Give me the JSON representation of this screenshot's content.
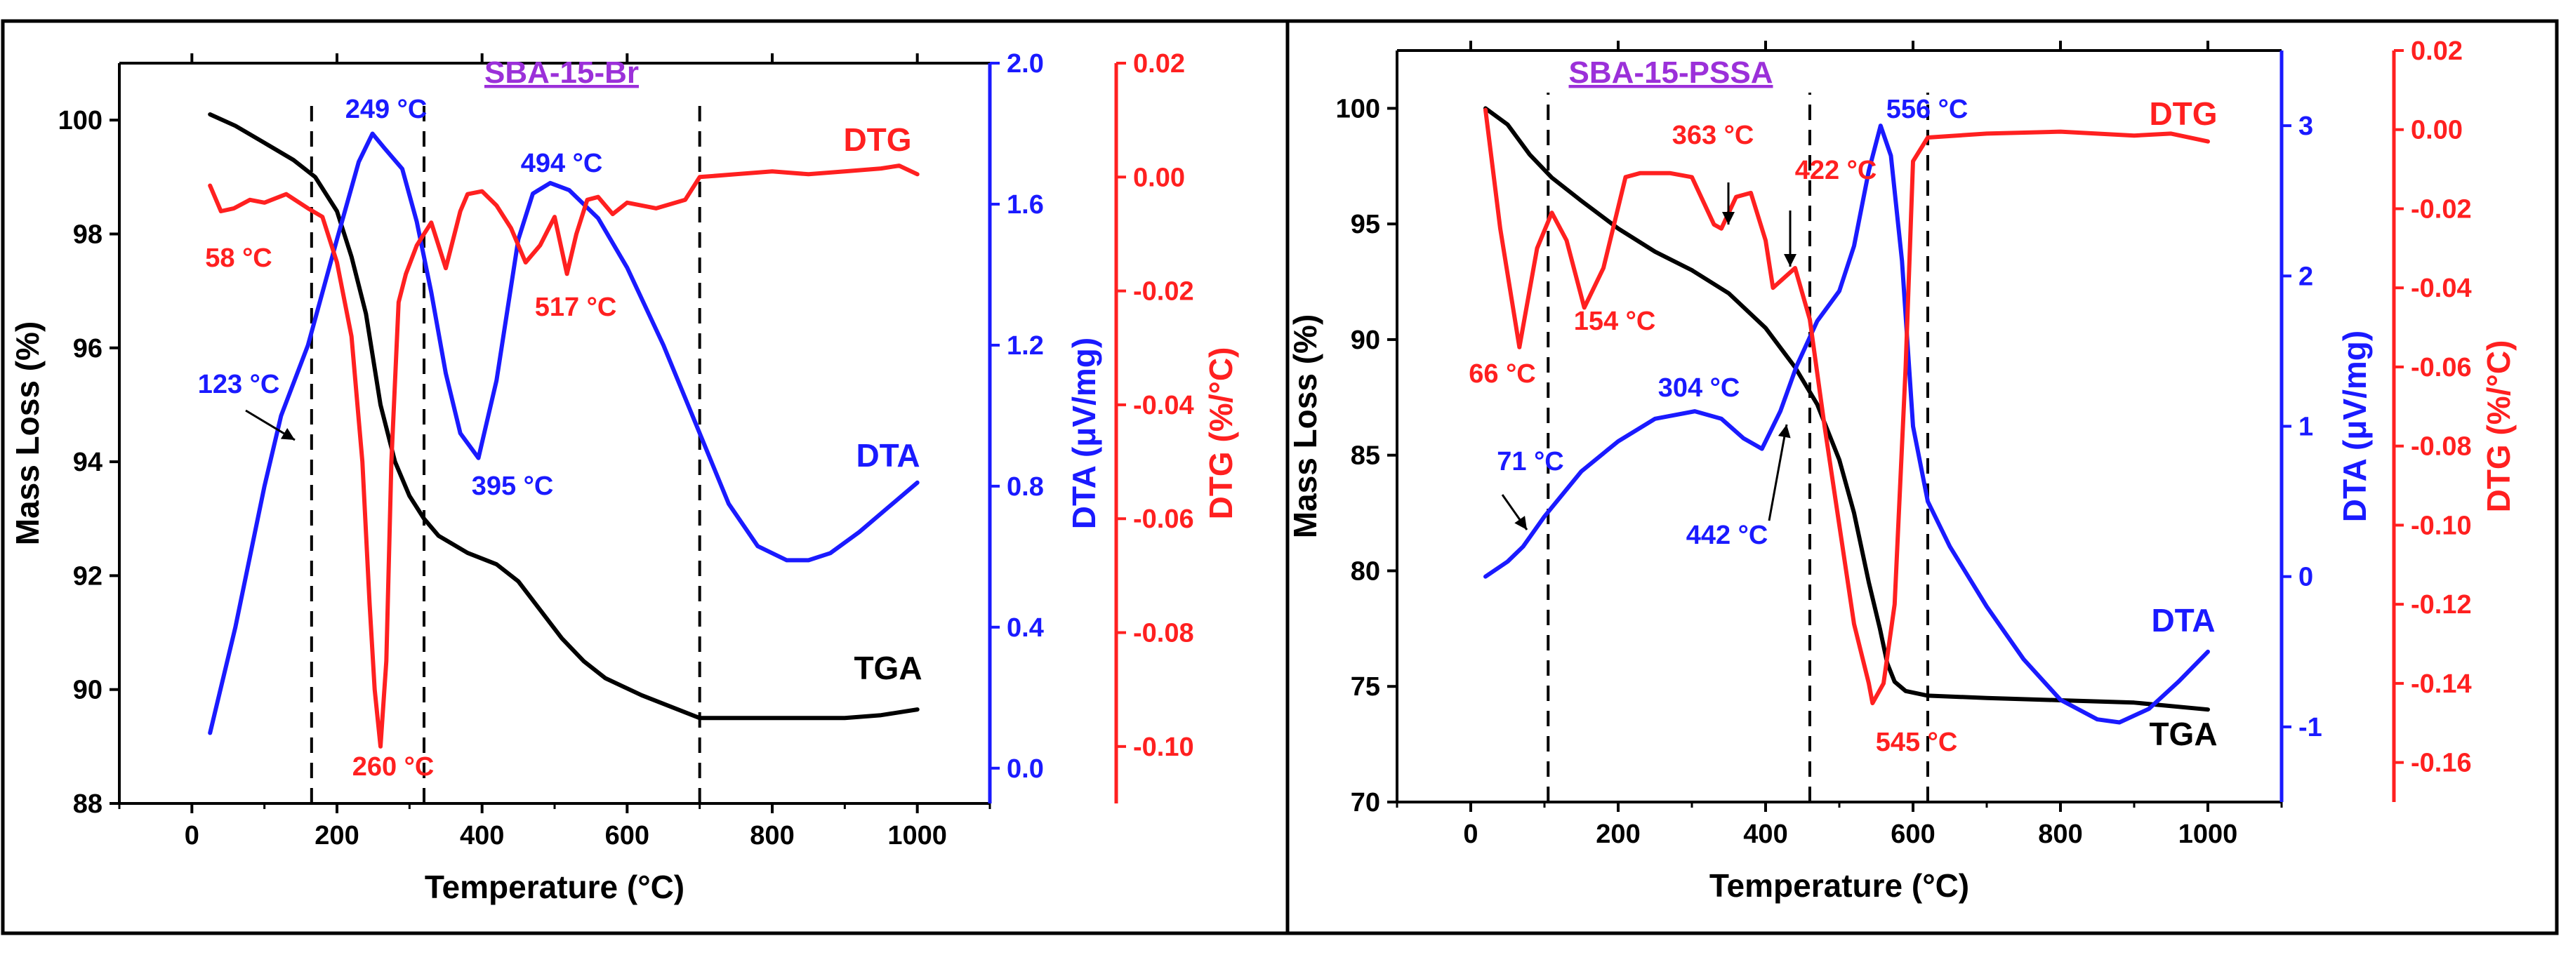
{
  "chart_data": [
    {
      "type": "line",
      "title": "SBA-15-Br",
      "xlabel": "Temperature (°C)",
      "xlim": [
        -100,
        1100
      ],
      "xticks": [
        0,
        200,
        400,
        600,
        800,
        1000
      ],
      "tga_axis": {
        "label": "Mass Loss (%)",
        "range": [
          88,
          101
        ],
        "ticks": [
          88,
          90,
          92,
          94,
          96,
          98,
          100
        ]
      },
      "dta_axis": {
        "label": "DTA (μV/mg)",
        "range": [
          -0.1,
          2.0
        ],
        "ticks": [
          0.0,
          0.4,
          0.8,
          1.2,
          1.6,
          2.0
        ],
        "tick_labels": [
          "0.0",
          "0.4",
          "0.8",
          "1.2",
          "1.6",
          "2.0"
        ]
      },
      "dtg_axis": {
        "label": "DTG (%/°C)",
        "range": [
          -0.11,
          0.02
        ],
        "ticks": [
          -0.1,
          -0.08,
          -0.06,
          -0.04,
          -0.02,
          0.0,
          0.02
        ],
        "tick_labels": [
          "-0.10",
          "-0.08",
          "-0.06",
          "-0.04",
          "-0.02",
          "0.00",
          "0.02"
        ]
      },
      "series": [
        {
          "name": "TGA",
          "color": "#000000",
          "axis": "tga",
          "x": [
            25,
            60,
            100,
            140,
            170,
            200,
            220,
            240,
            260,
            280,
            300,
            320,
            340,
            380,
            420,
            450,
            480,
            510,
            540,
            570,
            620,
            680,
            700,
            750,
            800,
            850,
            900,
            950,
            1000
          ],
          "y": [
            100.1,
            99.9,
            99.6,
            99.3,
            99.0,
            98.4,
            97.6,
            96.6,
            95.0,
            94.0,
            93.4,
            93.0,
            92.7,
            92.4,
            92.2,
            91.9,
            91.4,
            90.9,
            90.5,
            90.2,
            89.9,
            89.6,
            89.5,
            89.5,
            89.5,
            89.5,
            89.5,
            89.55,
            89.65
          ]
        },
        {
          "name": "DTA",
          "color": "#1a1aff",
          "axis": "dta",
          "x": [
            25,
            60,
            100,
            123,
            160,
            200,
            230,
            249,
            265,
            290,
            310,
            330,
            350,
            370,
            395,
            420,
            450,
            470,
            494,
            520,
            560,
            600,
            650,
            700,
            740,
            780,
            820,
            850,
            880,
            920,
            960,
            1000
          ],
          "y": [
            0.1,
            0.4,
            0.8,
            1.0,
            1.2,
            1.5,
            1.72,
            1.8,
            1.76,
            1.7,
            1.55,
            1.35,
            1.12,
            0.95,
            0.88,
            1.1,
            1.5,
            1.63,
            1.66,
            1.64,
            1.56,
            1.42,
            1.2,
            0.95,
            0.75,
            0.63,
            0.59,
            0.59,
            0.61,
            0.67,
            0.74,
            0.81
          ]
        },
        {
          "name": "DTG",
          "color": "#ff2020",
          "axis": "dtg",
          "x": [
            25,
            40,
            58,
            80,
            100,
            130,
            160,
            180,
            200,
            220,
            235,
            245,
            252,
            260,
            268,
            275,
            285,
            295,
            310,
            330,
            350,
            370,
            380,
            400,
            420,
            440,
            460,
            480,
            500,
            517,
            530,
            545,
            560,
            580,
            600,
            640,
            680,
            700,
            750,
            800,
            850,
            900,
            950,
            975,
            1000
          ],
          "y": [
            -0.0015,
            -0.006,
            -0.0055,
            -0.004,
            -0.0045,
            -0.003,
            -0.0055,
            -0.007,
            -0.015,
            -0.028,
            -0.05,
            -0.075,
            -0.09,
            -0.1,
            -0.085,
            -0.05,
            -0.022,
            -0.017,
            -0.012,
            -0.008,
            -0.016,
            -0.006,
            -0.003,
            -0.0025,
            -0.005,
            -0.009,
            -0.015,
            -0.012,
            -0.007,
            -0.017,
            -0.01,
            -0.004,
            -0.0035,
            -0.0065,
            -0.0045,
            -0.0055,
            -0.004,
            0.0,
            0.0005,
            0.001,
            0.0005,
            0.001,
            0.0015,
            0.002,
            0.0005
          ]
        }
      ],
      "annotations": [
        {
          "text": "249 °C",
          "color": "blue"
        },
        {
          "text": "123 °C",
          "color": "blue"
        },
        {
          "text": "395 °C",
          "color": "blue"
        },
        {
          "text": "494 °C",
          "color": "blue"
        },
        {
          "text": "58 °C",
          "color": "red"
        },
        {
          "text": "517 °C",
          "color": "red"
        },
        {
          "text": "260 °C",
          "color": "red"
        }
      ],
      "vlines": [
        165,
        320,
        700
      ],
      "curve_labels": {
        "dtg": "DTG",
        "dta": "DTA",
        "tga": "TGA"
      }
    },
    {
      "type": "line",
      "title": "SBA-15-PSSA",
      "xlabel": "Temperature (°C)",
      "xlim": [
        -100,
        1100
      ],
      "xticks": [
        0,
        200,
        400,
        600,
        800,
        1000
      ],
      "tga_axis": {
        "label": "Mass Loss (%)",
        "range": [
          70,
          102.5
        ],
        "ticks": [
          70,
          75,
          80,
          85,
          90,
          95,
          100
        ]
      },
      "dta_axis": {
        "label": "DTA (μV/mg)",
        "range": [
          -1.5,
          3.5
        ],
        "ticks": [
          -1,
          0,
          1,
          2,
          3
        ],
        "tick_labels": [
          "-1",
          "0",
          "1",
          "2",
          "3"
        ]
      },
      "dtg_axis": {
        "label": "DTG (%/°C)",
        "range": [
          -0.17,
          0.02
        ],
        "ticks": [
          -0.16,
          -0.14,
          -0.12,
          -0.1,
          -0.08,
          -0.06,
          -0.04,
          -0.02,
          0.0,
          0.02
        ],
        "tick_labels": [
          "-0.16",
          "-0.14",
          "-0.12",
          "-0.10",
          "-0.08",
          "-0.06",
          "-0.04",
          "-0.02",
          "0.00",
          "0.02"
        ]
      },
      "series": [
        {
          "name": "TGA",
          "color": "#000000",
          "axis": "tga",
          "x": [
            20,
            50,
            80,
            110,
            150,
            200,
            250,
            300,
            350,
            400,
            440,
            470,
            500,
            520,
            540,
            555,
            565,
            575,
            590,
            620,
            700,
            800,
            900,
            1000
          ],
          "y": [
            100.0,
            99.3,
            98.0,
            97.0,
            96.0,
            94.8,
            93.8,
            93.0,
            92.0,
            90.5,
            88.8,
            87.2,
            84.8,
            82.5,
            79.5,
            77.5,
            76.0,
            75.2,
            74.8,
            74.6,
            74.5,
            74.4,
            74.3,
            74.0
          ]
        },
        {
          "name": "DTA",
          "color": "#1a1aff",
          "axis": "dta",
          "x": [
            20,
            50,
            71,
            100,
            150,
            200,
            250,
            304,
            340,
            370,
            395,
            420,
            442,
            470,
            500,
            520,
            540,
            556,
            570,
            585,
            600,
            620,
            650,
            700,
            750,
            800,
            850,
            880,
            920,
            960,
            1000
          ],
          "y": [
            0.0,
            0.1,
            0.2,
            0.4,
            0.7,
            0.9,
            1.05,
            1.1,
            1.05,
            0.92,
            0.85,
            1.1,
            1.4,
            1.7,
            1.9,
            2.2,
            2.7,
            3.0,
            2.8,
            2.1,
            1.0,
            0.5,
            0.2,
            -0.2,
            -0.55,
            -0.82,
            -0.95,
            -0.97,
            -0.88,
            -0.7,
            -0.5
          ]
        },
        {
          "name": "DTG",
          "color": "#ff2020",
          "axis": "dtg",
          "x": [
            20,
            40,
            66,
            90,
            110,
            130,
            154,
            180,
            210,
            230,
            270,
            300,
            330,
            340,
            360,
            380,
            400,
            410,
            422,
            440,
            460,
            480,
            500,
            520,
            540,
            545,
            560,
            575,
            590,
            600,
            620,
            700,
            800,
            900,
            950,
            1000
          ],
          "y": [
            0.005,
            -0.025,
            -0.055,
            -0.03,
            -0.021,
            -0.028,
            -0.045,
            -0.035,
            -0.012,
            -0.011,
            -0.011,
            -0.012,
            -0.024,
            -0.025,
            -0.017,
            -0.016,
            -0.028,
            -0.04,
            -0.038,
            -0.035,
            -0.048,
            -0.075,
            -0.1,
            -0.125,
            -0.14,
            -0.145,
            -0.14,
            -0.12,
            -0.06,
            -0.008,
            -0.002,
            -0.001,
            -0.0005,
            -0.0015,
            -0.001,
            -0.003
          ]
        }
      ],
      "annotations": [
        {
          "text": "363 °C",
          "color": "red"
        },
        {
          "text": "422 °C",
          "color": "red"
        },
        {
          "text": "66 °C",
          "color": "red"
        },
        {
          "text": "154 °C",
          "color": "red"
        },
        {
          "text": "545 °C",
          "color": "red"
        },
        {
          "text": "556 °C",
          "color": "blue"
        },
        {
          "text": "304 °C",
          "color": "blue"
        },
        {
          "text": "71 °C",
          "color": "blue"
        },
        {
          "text": "442 °C",
          "color": "blue"
        }
      ],
      "vlines": [
        105,
        460,
        620
      ],
      "curve_labels": {
        "dtg": "DTG",
        "dta": "DTA",
        "tga": "TGA"
      }
    }
  ]
}
